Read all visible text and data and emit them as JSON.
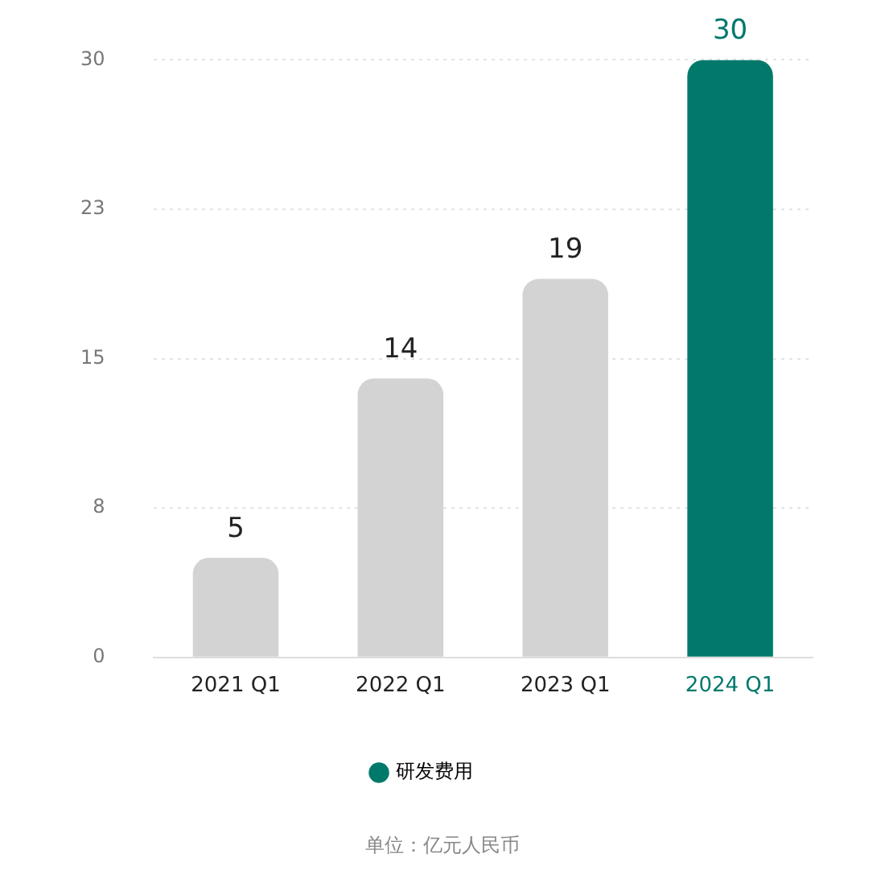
{
  "chart_data": {
    "type": "bar",
    "categories": [
      "2021 Q1",
      "2022 Q1",
      "2023 Q1",
      "2024 Q1"
    ],
    "series": [
      {
        "name": "研发费用",
        "colors": [
          "#d3d3d3",
          "#d3d3d3",
          "#d3d3d3",
          "#00796b"
        ],
        "values": [
          5,
          14,
          19,
          30
        ]
      }
    ],
    "ylim": [
      0,
      30
    ],
    "yticks": [
      0,
      {
        "value": 7.5,
        "label": "8"
      },
      15,
      {
        "value": 22.5,
        "label": "23"
      },
      30
    ],
    "grid": "y",
    "data_labels": true,
    "legend": "bottom",
    "annotations": [
      "单位：亿元人民币"
    ]
  }
}
